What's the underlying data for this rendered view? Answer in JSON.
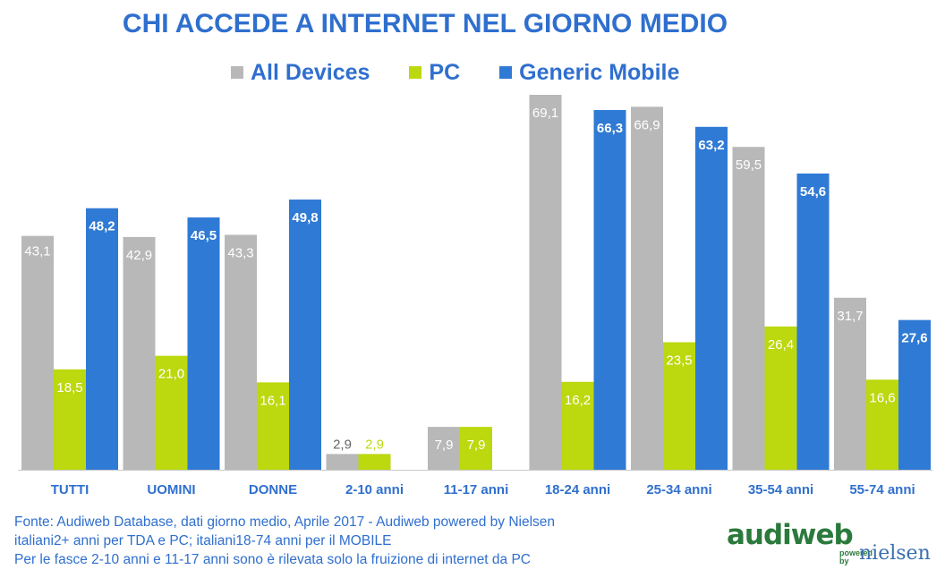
{
  "chart_data": {
    "type": "bar",
    "title": "CHI ACCEDE A INTERNET NEL GIORNO MEDIO",
    "categories": [
      "TUTTI",
      "UOMINI",
      "DONNE",
      "2-10 anni",
      "11-17 anni",
      "18-24 anni",
      "25-34 anni",
      "35-54 anni",
      "55-74 anni"
    ],
    "series": [
      {
        "name": "All Devices",
        "color": "#b8b8b8",
        "label_color": "#ffffff",
        "values": [
          43.1,
          42.9,
          43.3,
          2.9,
          7.9,
          69.1,
          66.9,
          59.5,
          31.7
        ],
        "labels": [
          "43,1",
          "42,9",
          "43,3",
          "2,9",
          "7,9",
          "69,1",
          "66,9",
          "59,5",
          "31,7"
        ]
      },
      {
        "name": "PC",
        "color": "#bcd80e",
        "label_color": "#ffffff",
        "values": [
          18.5,
          21.0,
          16.1,
          2.9,
          7.9,
          16.2,
          23.5,
          26.4,
          16.6
        ],
        "labels": [
          "18,5",
          "21,0",
          "16,1",
          "2,9",
          "7,9",
          "16,2",
          "23,5",
          "26,4",
          "16,6"
        ]
      },
      {
        "name": "Generic Mobile",
        "color": "#2f7ad4",
        "label_color": "#ffffff",
        "values": [
          48.2,
          46.5,
          49.8,
          null,
          null,
          66.3,
          63.2,
          54.6,
          27.6
        ],
        "labels": [
          "48,2",
          "46,5",
          "49,8",
          "",
          "",
          "66,3",
          "63,2",
          "54,6",
          "27,6"
        ]
      }
    ],
    "xlabel": "",
    "ylabel": "",
    "ylim": [
      0,
      70
    ],
    "grid": false,
    "legend_position": "top"
  },
  "footer": {
    "line1": "Fonte: Audiweb Database, dati giorno medio, Aprile 2017 - Audiweb powered by Nielsen",
    "line2": "italiani2+ anni per TDA e PC; italiani18-74 anni per il MOBILE",
    "line3": "Per le fasce 2-10 anni e 11-17 anni sono è rilevata solo la fruizione di internet da PC"
  },
  "logo": {
    "name": "audiweb",
    "powered": "powered",
    "by": "by",
    "partner": "nielsen"
  },
  "colors": {
    "title": "#2f6fce",
    "axis_label": "#2f6fce"
  }
}
